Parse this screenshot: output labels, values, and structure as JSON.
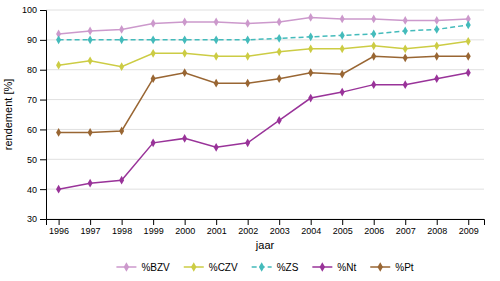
{
  "chart_data": {
    "type": "line",
    "x": [
      1996,
      1997,
      1998,
      1999,
      2000,
      2001,
      2002,
      2003,
      2004,
      2005,
      2006,
      2007,
      2008,
      2009
    ],
    "xlim": [
      1995.6,
      2009.5
    ],
    "xticks": [
      1996,
      1997,
      1998,
      1999,
      2000,
      2001,
      2002,
      2003,
      2004,
      2005,
      2006,
      2007,
      2008,
      2009
    ],
    "ylim": [
      30,
      100
    ],
    "yticks": [
      30,
      40,
      50,
      60,
      70,
      80,
      90,
      100
    ],
    "xlabel": "jaar",
    "ylabel": "rendement [%]",
    "grid": true,
    "legend": "bottom",
    "series": [
      {
        "name": "%BZV",
        "color": "#cc99cc",
        "marker": "diamond",
        "line_style": "solid",
        "values": [
          92,
          93,
          93.5,
          95.5,
          96,
          96,
          95.5,
          96,
          97.5,
          97,
          97,
          96.5,
          96.5,
          97
        ]
      },
      {
        "name": "%CZV",
        "color": "#cccc44",
        "marker": "diamond",
        "line_style": "solid",
        "values": [
          81.5,
          83,
          81,
          85.5,
          85.5,
          84.5,
          84.5,
          86,
          87,
          87,
          88,
          87,
          88,
          89.5
        ]
      },
      {
        "name": "%ZS",
        "color": "#44bbbb",
        "marker": "diamond",
        "line_style": "dashed",
        "values": [
          90,
          90,
          90,
          90,
          90,
          90,
          90,
          90.5,
          91,
          91.5,
          92,
          93,
          93.5,
          95
        ]
      },
      {
        "name": "%Nt",
        "color": "#993399",
        "marker": "diamond",
        "line_style": "solid",
        "values": [
          40,
          42,
          43,
          55.5,
          57,
          54,
          55.5,
          63,
          70.5,
          72.5,
          75,
          75,
          77,
          79
        ]
      },
      {
        "name": "%Pt",
        "color": "#996633",
        "marker": "diamond",
        "line_style": "solid",
        "values": [
          59,
          59,
          59.5,
          77,
          79,
          75.5,
          75.5,
          77,
          79,
          78.5,
          84.5,
          84,
          84.5,
          84.5
        ]
      }
    ]
  }
}
